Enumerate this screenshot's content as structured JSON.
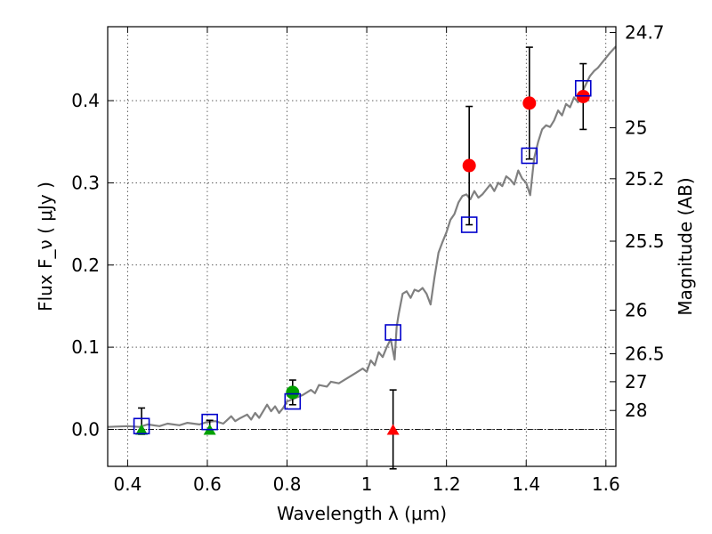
{
  "chart_data": {
    "type": "scatter",
    "xlabel": "Wavelength  λ (μm)",
    "ylabel": "Flux  F_ν  ( μJy )",
    "ylabel_right": "Magnitude (AB)",
    "xlim": [
      0.35,
      1.625
    ],
    "ylim": [
      -0.045,
      0.49
    ],
    "grid": true,
    "x_ticks": [
      0.4,
      0.6,
      0.8,
      1,
      1.2,
      1.4,
      1.6
    ],
    "x_tick_labels": [
      "0.4",
      "0.6",
      "0.8",
      "1",
      "1.2",
      "1.4",
      "1.6"
    ],
    "y_ticks": [
      0.0,
      0.1,
      0.2,
      0.3,
      0.4
    ],
    "y_tick_labels": [
      "0.0",
      "0.1",
      "0.2",
      "0.3",
      "0.4"
    ],
    "mag_ticks": [
      {
        "label": "24.7",
        "flux": 0.483
      },
      {
        "label": "25",
        "flux": 0.367
      },
      {
        "label": "25.2",
        "flux": 0.305
      },
      {
        "label": "25.5",
        "flux": 0.229
      },
      {
        "label": "26",
        "flux": 0.145
      },
      {
        "label": "26.5",
        "flux": 0.092
      },
      {
        "label": "27",
        "flux": 0.058
      },
      {
        "label": "28",
        "flux": 0.023
      }
    ],
    "series": [
      {
        "marker": "circle",
        "color": "#ff0000",
        "points": [
          {
            "x": 1.257,
            "y": 0.321,
            "err": 0.072
          },
          {
            "x": 1.408,
            "y": 0.397,
            "err": 0.068
          },
          {
            "x": 1.543,
            "y": 0.405,
            "err": 0.04
          }
        ]
      },
      {
        "marker": "circle",
        "color": "#00a000",
        "points": [
          {
            "x": 0.814,
            "y": 0.045,
            "err": 0.015
          }
        ]
      },
      {
        "marker": "triangle",
        "color": "#00a000",
        "points": [
          {
            "x": 0.435,
            "y": 0.0
          },
          {
            "x": 0.606,
            "y": 0.0
          }
        ]
      },
      {
        "marker": "triangle",
        "color": "#ff0000",
        "points": [
          {
            "x": 1.066,
            "y": 0.0
          }
        ]
      },
      {
        "marker": "errorbar",
        "color": "#000000",
        "points": [
          {
            "x": 0.435,
            "y": 0.01,
            "err": 0.016
          },
          {
            "x": 0.606,
            "y": 0.003,
            "err": 0.008
          },
          {
            "x": 1.066,
            "y": 0.0,
            "err": 0.048
          }
        ]
      },
      {
        "marker": "open-square",
        "color": "#0000cc",
        "points": [
          {
            "x": 0.435,
            "y": 0.004
          },
          {
            "x": 0.606,
            "y": 0.009
          },
          {
            "x": 0.814,
            "y": 0.034
          },
          {
            "x": 1.066,
            "y": 0.118
          },
          {
            "x": 1.257,
            "y": 0.249
          },
          {
            "x": 1.408,
            "y": 0.333
          },
          {
            "x": 1.543,
            "y": 0.415
          }
        ]
      },
      {
        "marker": "line",
        "color": "#808080",
        "points": [
          {
            "x": 0.35,
            "y": 0.003
          },
          {
            "x": 0.4,
            "y": 0.004
          },
          {
            "x": 0.43,
            "y": 0.003
          },
          {
            "x": 0.45,
            "y": 0.006
          },
          {
            "x": 0.48,
            "y": 0.004
          },
          {
            "x": 0.5,
            "y": 0.007
          },
          {
            "x": 0.53,
            "y": 0.005
          },
          {
            "x": 0.55,
            "y": 0.008
          },
          {
            "x": 0.58,
            "y": 0.006
          },
          {
            "x": 0.6,
            "y": 0.009
          },
          {
            "x": 0.62,
            "y": 0.01
          },
          {
            "x": 0.64,
            "y": 0.007
          },
          {
            "x": 0.66,
            "y": 0.016
          },
          {
            "x": 0.67,
            "y": 0.01
          },
          {
            "x": 0.68,
            "y": 0.013
          },
          {
            "x": 0.7,
            "y": 0.018
          },
          {
            "x": 0.71,
            "y": 0.012
          },
          {
            "x": 0.72,
            "y": 0.02
          },
          {
            "x": 0.73,
            "y": 0.014
          },
          {
            "x": 0.74,
            "y": 0.022
          },
          {
            "x": 0.75,
            "y": 0.03
          },
          {
            "x": 0.76,
            "y": 0.022
          },
          {
            "x": 0.77,
            "y": 0.028
          },
          {
            "x": 0.78,
            "y": 0.02
          },
          {
            "x": 0.79,
            "y": 0.026
          },
          {
            "x": 0.8,
            "y": 0.034
          },
          {
            "x": 0.82,
            "y": 0.038
          },
          {
            "x": 0.84,
            "y": 0.042
          },
          {
            "x": 0.86,
            "y": 0.048
          },
          {
            "x": 0.87,
            "y": 0.044
          },
          {
            "x": 0.88,
            "y": 0.054
          },
          {
            "x": 0.9,
            "y": 0.052
          },
          {
            "x": 0.91,
            "y": 0.058
          },
          {
            "x": 0.93,
            "y": 0.056
          },
          {
            "x": 0.95,
            "y": 0.062
          },
          {
            "x": 0.97,
            "y": 0.068
          },
          {
            "x": 0.99,
            "y": 0.074
          },
          {
            "x": 1.0,
            "y": 0.07
          },
          {
            "x": 1.01,
            "y": 0.084
          },
          {
            "x": 1.02,
            "y": 0.078
          },
          {
            "x": 1.03,
            "y": 0.094
          },
          {
            "x": 1.04,
            "y": 0.088
          },
          {
            "x": 1.05,
            "y": 0.1
          },
          {
            "x": 1.06,
            "y": 0.11
          },
          {
            "x": 1.07,
            "y": 0.085
          },
          {
            "x": 1.075,
            "y": 0.125
          },
          {
            "x": 1.08,
            "y": 0.14
          },
          {
            "x": 1.09,
            "y": 0.165
          },
          {
            "x": 1.1,
            "y": 0.168
          },
          {
            "x": 1.11,
            "y": 0.16
          },
          {
            "x": 1.12,
            "y": 0.17
          },
          {
            "x": 1.13,
            "y": 0.168
          },
          {
            "x": 1.14,
            "y": 0.172
          },
          {
            "x": 1.15,
            "y": 0.165
          },
          {
            "x": 1.16,
            "y": 0.152
          },
          {
            "x": 1.17,
            "y": 0.185
          },
          {
            "x": 1.18,
            "y": 0.215
          },
          {
            "x": 1.19,
            "y": 0.228
          },
          {
            "x": 1.2,
            "y": 0.24
          },
          {
            "x": 1.21,
            "y": 0.255
          },
          {
            "x": 1.22,
            "y": 0.262
          },
          {
            "x": 1.23,
            "y": 0.276
          },
          {
            "x": 1.24,
            "y": 0.284
          },
          {
            "x": 1.25,
            "y": 0.286
          },
          {
            "x": 1.26,
            "y": 0.28
          },
          {
            "x": 1.27,
            "y": 0.29
          },
          {
            "x": 1.28,
            "y": 0.282
          },
          {
            "x": 1.29,
            "y": 0.286
          },
          {
            "x": 1.3,
            "y": 0.292
          },
          {
            "x": 1.31,
            "y": 0.298
          },
          {
            "x": 1.32,
            "y": 0.29
          },
          {
            "x": 1.33,
            "y": 0.3
          },
          {
            "x": 1.34,
            "y": 0.296
          },
          {
            "x": 1.35,
            "y": 0.308
          },
          {
            "x": 1.36,
            "y": 0.304
          },
          {
            "x": 1.37,
            "y": 0.298
          },
          {
            "x": 1.38,
            "y": 0.315
          },
          {
            "x": 1.39,
            "y": 0.305
          },
          {
            "x": 1.4,
            "y": 0.3
          },
          {
            "x": 1.41,
            "y": 0.285
          },
          {
            "x": 1.42,
            "y": 0.33
          },
          {
            "x": 1.43,
            "y": 0.35
          },
          {
            "x": 1.44,
            "y": 0.365
          },
          {
            "x": 1.45,
            "y": 0.37
          },
          {
            "x": 1.46,
            "y": 0.368
          },
          {
            "x": 1.47,
            "y": 0.376
          },
          {
            "x": 1.48,
            "y": 0.388
          },
          {
            "x": 1.49,
            "y": 0.382
          },
          {
            "x": 1.5,
            "y": 0.396
          },
          {
            "x": 1.51,
            "y": 0.392
          },
          {
            "x": 1.52,
            "y": 0.404
          },
          {
            "x": 1.53,
            "y": 0.398
          },
          {
            "x": 1.54,
            "y": 0.41
          },
          {
            "x": 1.55,
            "y": 0.42
          },
          {
            "x": 1.56,
            "y": 0.43
          },
          {
            "x": 1.57,
            "y": 0.436
          },
          {
            "x": 1.58,
            "y": 0.44
          },
          {
            "x": 1.59,
            "y": 0.446
          },
          {
            "x": 1.6,
            "y": 0.452
          },
          {
            "x": 1.61,
            "y": 0.458
          },
          {
            "x": 1.625,
            "y": 0.466
          }
        ]
      }
    ]
  }
}
